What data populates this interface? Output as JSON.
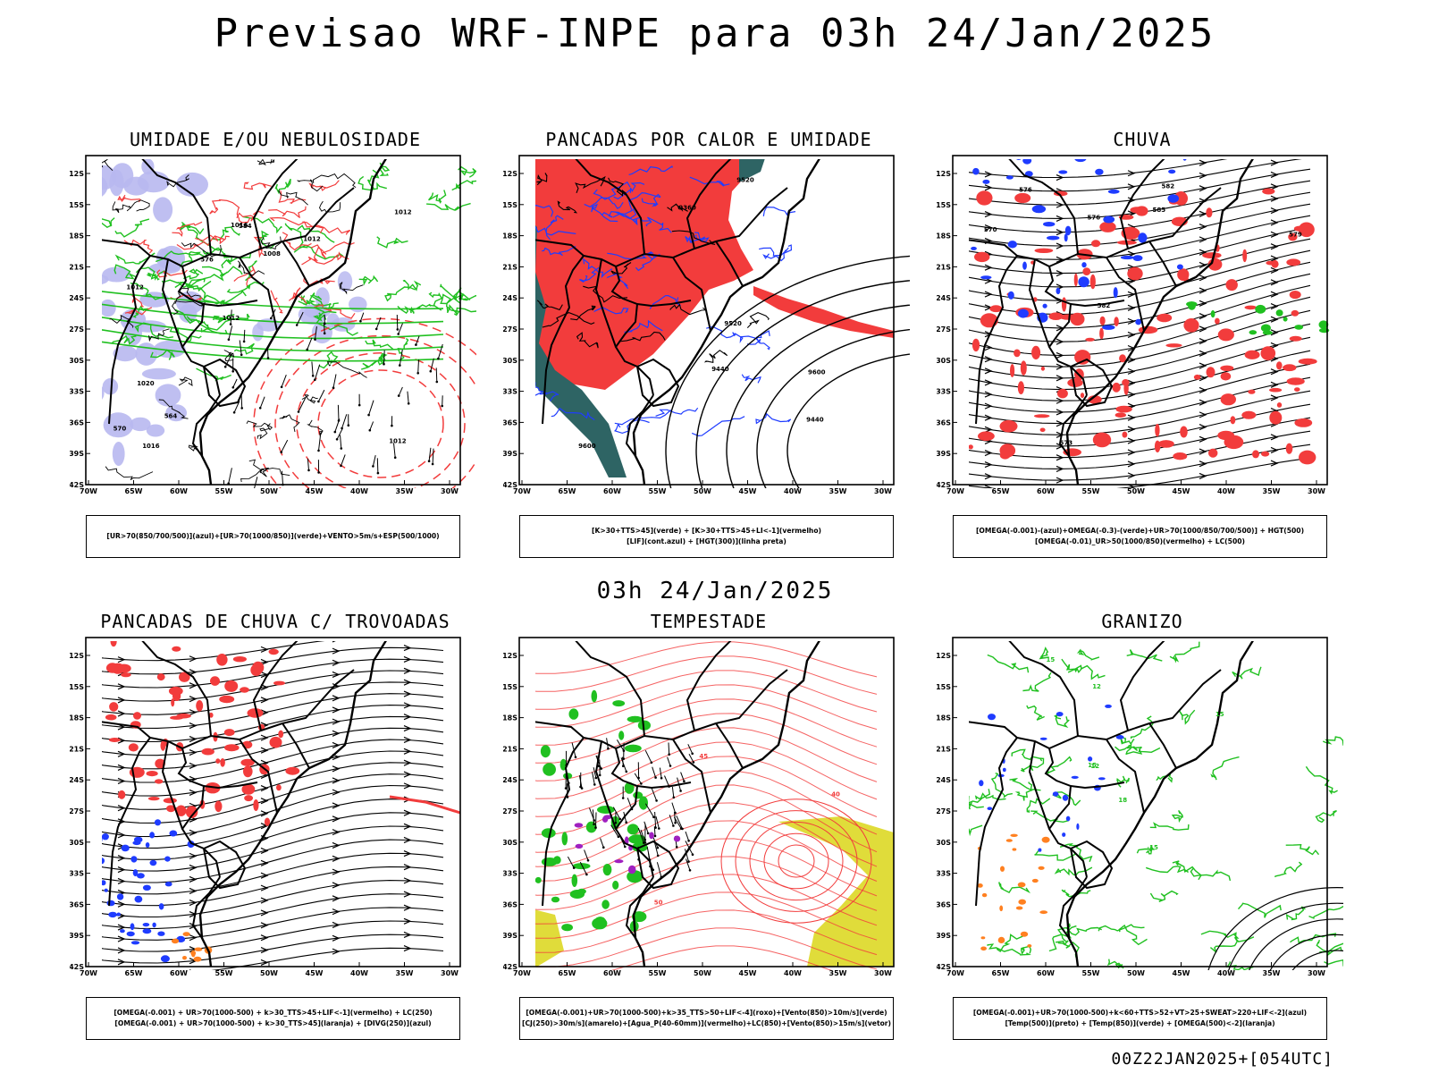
{
  "header": {
    "title": "Previsao WRF-INPE  para 03h 24/Jan/2025"
  },
  "mid_title": "03h 24/Jan/2025",
  "footer_stamp": "00Z22JAN2025+[054UTC]",
  "axes": {
    "lat_labels": [
      "12S",
      "15S",
      "18S",
      "21S",
      "24S",
      "27S",
      "30S",
      "33S",
      "36S",
      "39S",
      "42S"
    ],
    "lon_labels": [
      "70W",
      "65W",
      "60W",
      "55W",
      "50W",
      "45W",
      "40W",
      "35W",
      "30W"
    ]
  },
  "colors": {
    "green": "#20c020",
    "red": "#f23c3c",
    "blue": "#1f3cff",
    "lavender": "#b8b8f0",
    "teal": "#2e6464",
    "yellow": "#e0dc3a",
    "orange": "#ff8020",
    "purple": "#a020c0"
  },
  "panels": [
    {
      "title": "UMIDADE E/OU NEBULOSIDADE",
      "legend": [
        "[UR>70(850/700/500)](azul)+[UR>70(1000/850)](verde)+VENTO>5m/s+ESP(500/1000)"
      ],
      "contour_labels": [
        "1012",
        "1012",
        "1012",
        "1012",
        "1012",
        "1016",
        "1016",
        "1008",
        "1020",
        "576",
        "570",
        "564",
        "584"
      ]
    },
    {
      "title": "PANCADAS POR CALOR E UMIDADE",
      "legend": [
        "[K>30+TTS>45](verde) + [K>30+TTS>45+LI<-1](vermelho)",
        "[LIF](cont.azul) + [HGT(300)](linha preta)"
      ],
      "contour_labels": [
        "9600",
        "9600",
        "9520",
        "9440",
        "9360",
        "9520",
        "9440"
      ]
    },
    {
      "title": "CHUVA",
      "legend": [
        "[OMEGA(-0.001)-(azul)+OMEGA(-0.3)-(verde)+UR>70(1000/850/700/500)] + HGT(500)",
        "[OMEGA(-0.01)_UR>50(1000/850)(vermelho) + LC(500)"
      ],
      "contour_labels": [
        "585",
        "582",
        "579",
        "576",
        "573",
        "570",
        "576",
        "582"
      ]
    },
    {
      "title": "PANCADAS DE CHUVA C/ TROVOADAS",
      "legend": [
        "[OMEGA(-0.001) + UR>70(1000-500) + k>30_TTS>45+LIF<-1](vermelho) + LC(250)",
        "[OMEGA(-0.001) + UR>70(1000-500) + k>30_TTS>45](laranja) + [DIVG(250)](azul)"
      ],
      "contour_labels": []
    },
    {
      "title": "TEMPESTADE",
      "legend": [
        "[OMEGA(-0.001)+UR>70(1000-500)+k>35_TTS>50+LIF<-4](roxo)+[Vento(850)>10m/s](verde)",
        "[CJ(250)>30m/s](amarelo)+[Agua_P(40-60mm)](vermelho)+LC(850)+[Vento(850)>15m/s](vetor)"
      ],
      "contour_labels": [
        "50",
        "45",
        "40"
      ]
    },
    {
      "title": "GRANIZO",
      "legend": [
        "[OMEGA(-0.001)+UR>70(1000-500)+k<60+TTS>52+VT>25+SWEAT>220+LIF<-2](azul)",
        "[Temp(500)](preto) + [Temp(850)](verde) + [OMEGA(500)<-2](laranja)"
      ],
      "contour_labels": [
        "15",
        "18",
        "12",
        "15",
        "12",
        "-15",
        "15"
      ]
    }
  ]
}
